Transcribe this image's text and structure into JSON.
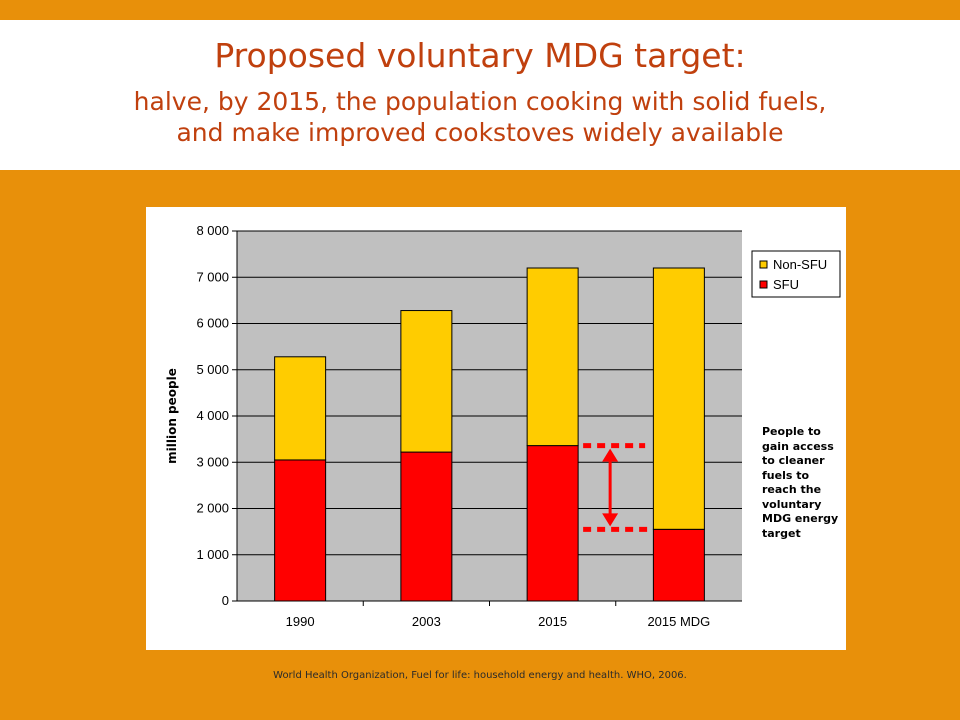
{
  "title": {
    "main": "Proposed voluntary MDG target:",
    "sub_line1": "halve, by 2015, the population cooking with solid fuels,",
    "sub_line2": "and make improved cookstoves widely available"
  },
  "chart_data": {
    "type": "bar",
    "stacked": true,
    "categories": [
      "1990",
      "2003",
      "2015",
      "2015 MDG"
    ],
    "series": [
      {
        "name": "SFU",
        "color": "#FF0000",
        "values": [
          3050,
          3220,
          3360,
          1550
        ]
      },
      {
        "name": "Non-SFU",
        "color": "#FFCC00",
        "values": [
          2230,
          3060,
          3840,
          5650
        ]
      }
    ],
    "ylabel": "million people",
    "xlabel": "",
    "ylim": [
      0,
      8000
    ],
    "yticks": [
      0,
      1000,
      2000,
      3000,
      4000,
      5000,
      6000,
      7000,
      8000
    ],
    "ytick_labels": [
      "0",
      "1 000",
      "2 000",
      "3 000",
      "4 000",
      "5 000",
      "6 000",
      "7 000",
      "8 000"
    ],
    "grid": true,
    "plot_background": "#C0C0C0",
    "legend": {
      "position": "right",
      "entries": [
        "Non-SFU",
        "SFU"
      ]
    },
    "annotation_lines": [
      "People to",
      "gain access",
      "to cleaner",
      "fuels to",
      "reach the",
      "voluntary",
      "MDG energy",
      "target"
    ]
  },
  "source": "World Health Organization, Fuel for life: household energy and health. WHO, 2006.",
  "colors": {
    "background": "#E8900A",
    "title": "#C0400E",
    "arrow": "#FF0000"
  }
}
